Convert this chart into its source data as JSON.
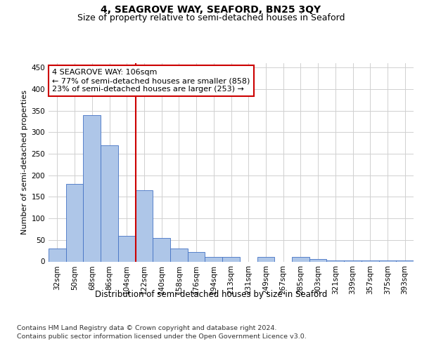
{
  "title": "4, SEAGROVE WAY, SEAFORD, BN25 3QY",
  "subtitle": "Size of property relative to semi-detached houses in Seaford",
  "xlabel": "Distribution of semi-detached houses by size in Seaford",
  "ylabel": "Number of semi-detached properties",
  "footnote1": "Contains HM Land Registry data © Crown copyright and database right 2024.",
  "footnote2": "Contains public sector information licensed under the Open Government Licence v3.0.",
  "annotation_line1": "4 SEAGROVE WAY: 106sqm",
  "annotation_line2": "← 77% of semi-detached houses are smaller (858)",
  "annotation_line3": "23% of semi-detached houses are larger (253) →",
  "categories": [
    "32sqm",
    "50sqm",
    "68sqm",
    "86sqm",
    "104sqm",
    "122sqm",
    "140sqm",
    "158sqm",
    "176sqm",
    "194sqm",
    "213sqm",
    "231sqm",
    "249sqm",
    "267sqm",
    "285sqm",
    "303sqm",
    "321sqm",
    "339sqm",
    "357sqm",
    "375sqm",
    "393sqm"
  ],
  "bar_values": [
    30,
    180,
    340,
    270,
    60,
    165,
    55,
    30,
    22,
    10,
    10,
    0,
    10,
    0,
    10,
    5,
    2,
    2,
    2,
    2,
    2
  ],
  "bar_color": "#aec6e8",
  "bar_edge_color": "#4472c4",
  "vline_color": "#cc0000",
  "vline_x_index": 4,
  "annotation_box_color": "#cc0000",
  "ylim": [
    0,
    460
  ],
  "yticks": [
    0,
    50,
    100,
    150,
    200,
    250,
    300,
    350,
    400,
    450
  ],
  "grid_color": "#d0d0d0",
  "background_color": "#ffffff",
  "title_fontsize": 10,
  "subtitle_fontsize": 9,
  "axis_label_fontsize": 8.5,
  "tick_fontsize": 7.5,
  "annotation_fontsize": 8,
  "ylabel_fontsize": 8
}
